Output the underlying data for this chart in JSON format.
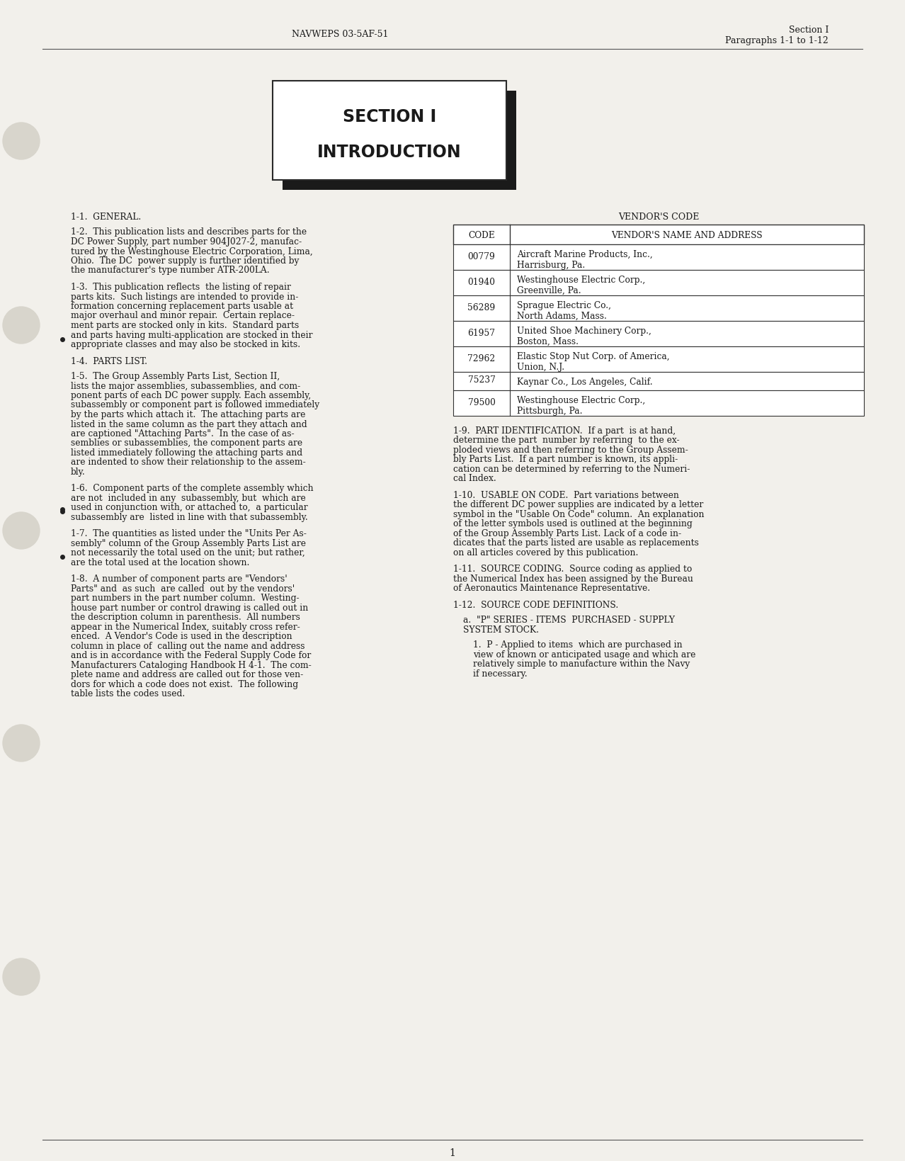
{
  "bg_color": "#f2f0eb",
  "text_color": "#1a1a1a",
  "header_left": "NAVWEPS 03-5AF-51",
  "header_right_line1": "Section I",
  "header_right_line2": "Paragraphs 1-1 to 1-12",
  "section_title_line1": "SECTION I",
  "section_title_line2": "INTRODUCTION",
  "footer_page": "1",
  "vendor_table": {
    "rows": [
      [
        "00779",
        "Aircraft Marine Products, Inc.,",
        "Harrisburg, Pa."
      ],
      [
        "01940",
        "Westinghouse Electric Corp.,",
        "Greenville, Pa."
      ],
      [
        "56289",
        "Sprague Electric Co.,",
        "North Adams, Mass."
      ],
      [
        "61957",
        "United Shoe Machinery Corp.,",
        "Boston, Mass."
      ],
      [
        "72962",
        "Elastic Stop Nut Corp. of America,",
        "Union, N.J."
      ],
      [
        "75237",
        "Kaynar Co., Los Angeles, Calif.",
        ""
      ],
      [
        "79500",
        "Westinghouse Electric Corp.,",
        "Pittsburgh, Pa."
      ]
    ]
  }
}
